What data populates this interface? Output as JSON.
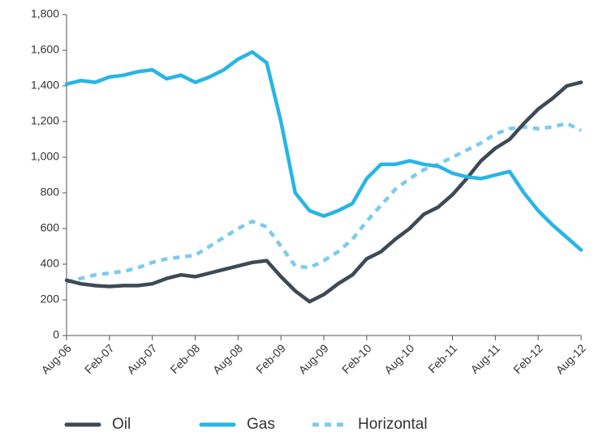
{
  "chart_data": {
    "type": "line",
    "categories": [
      "Aug-06",
      null,
      null,
      "Feb-07",
      null,
      null,
      "Aug-07",
      null,
      null,
      "Feb-08",
      null,
      null,
      "Aug-08",
      null,
      null,
      "Feb-09",
      null,
      null,
      "Aug-09",
      null,
      null,
      "Feb-10",
      null,
      null,
      "Aug-10",
      null,
      null,
      "Feb-11",
      null,
      null,
      "Aug-11",
      null,
      null,
      "Feb-12",
      null,
      null,
      "Aug-12"
    ],
    "series": [
      {
        "name": "Oil",
        "color": "#3d4a55",
        "dashed": false,
        "values": [
          310,
          290,
          280,
          275,
          280,
          280,
          290,
          320,
          340,
          330,
          350,
          370,
          390,
          410,
          420,
          330,
          250,
          190,
          230,
          290,
          340,
          430,
          470,
          540,
          600,
          680,
          720,
          790,
          880,
          980,
          1050,
          1100,
          1190,
          1270,
          1330,
          1400,
          1420
        ]
      },
      {
        "name": "Gas",
        "color": "#27b5e6",
        "dashed": false,
        "values": [
          1410,
          1430,
          1420,
          1450,
          1460,
          1480,
          1490,
          1440,
          1460,
          1420,
          1450,
          1490,
          1550,
          1590,
          1530,
          1200,
          800,
          700,
          670,
          700,
          740,
          880,
          960,
          960,
          980,
          960,
          950,
          910,
          890,
          880,
          900,
          920,
          800,
          700,
          620,
          550,
          480
        ]
      },
      {
        "name": "Horizontal",
        "color": "#7ccbee",
        "dashed": true,
        "values": [
          300,
          320,
          340,
          350,
          360,
          380,
          410,
          430,
          440,
          450,
          500,
          550,
          600,
          640,
          610,
          500,
          390,
          380,
          420,
          470,
          540,
          640,
          730,
          820,
          880,
          930,
          960,
          1000,
          1040,
          1080,
          1130,
          1160,
          1170,
          1160,
          1170,
          1190,
          1150
        ]
      }
    ],
    "ylim": [
      0,
      1800
    ],
    "yticks": [
      0,
      200,
      400,
      600,
      800,
      {
        "value": 1000,
        "label": "1,000"
      },
      {
        "value": 1200,
        "label": "1,200"
      },
      {
        "value": 1400,
        "label": "1,400"
      },
      {
        "value": 1600,
        "label": "1,600"
      },
      {
        "value": 1800,
        "label": "1,800"
      }
    ],
    "grid": false,
    "legend": "bottom"
  }
}
